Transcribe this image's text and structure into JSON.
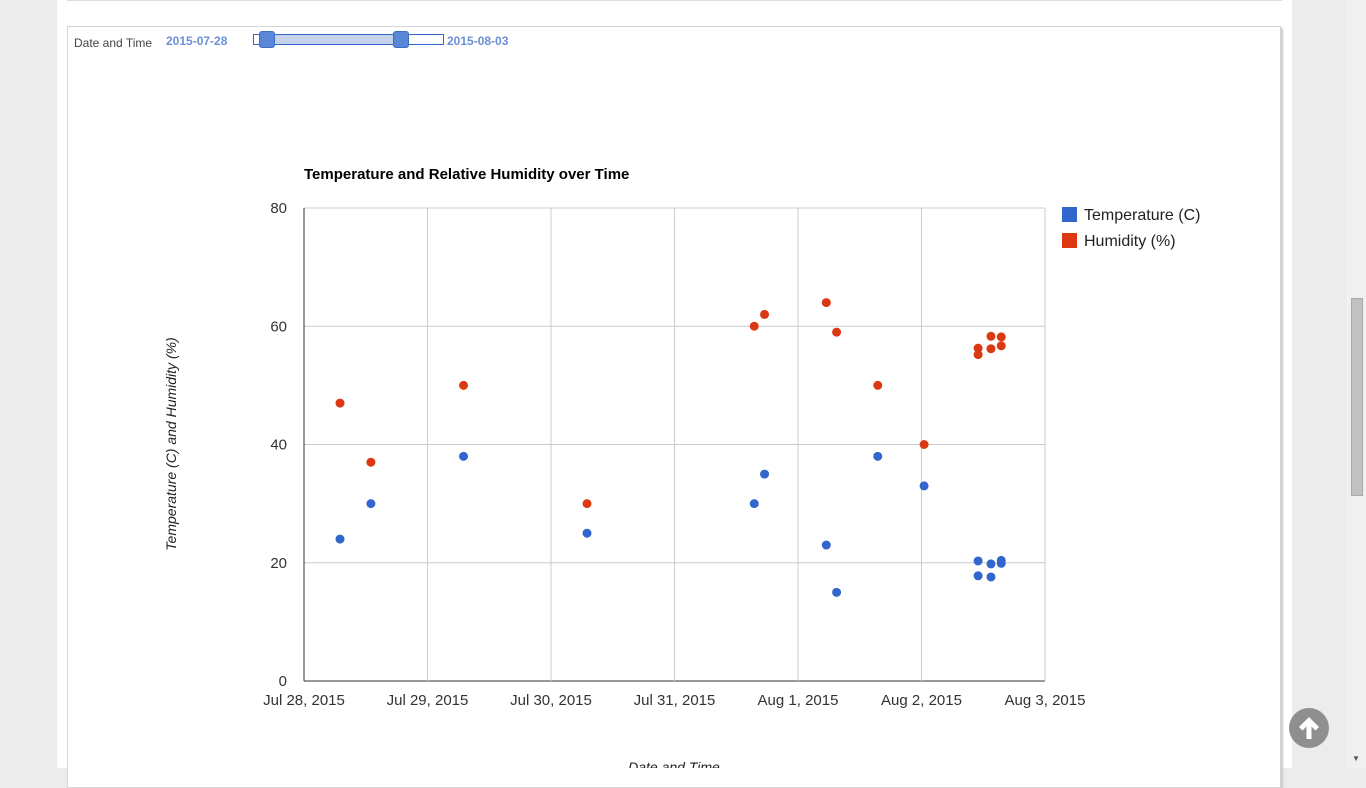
{
  "range_filter": {
    "label": "Date and Time",
    "start": "2015-07-28",
    "end": "2015-08-03",
    "low_fraction": 0.07,
    "high_fraction": 0.77
  },
  "chart_data": {
    "type": "scatter",
    "title": "Temperature and Relative Humidity over Time",
    "xlabel": "Date and Time",
    "ylabel": "Temperature (C) and Humidity (%)",
    "ylim": [
      0,
      80
    ],
    "yticks": [
      "0",
      "20",
      "40",
      "60",
      "80"
    ],
    "x_domain": [
      "2015-07-28T00:00",
      "2015-08-03T00:00"
    ],
    "xticks": [
      {
        "date": "2015-07-28",
        "label": "Jul 28, 2015"
      },
      {
        "date": "2015-07-29",
        "label": "Jul 29, 2015"
      },
      {
        "date": "2015-07-30",
        "label": "Jul 30, 2015"
      },
      {
        "date": "2015-07-31",
        "label": "Jul 31, 2015"
      },
      {
        "date": "2015-08-01",
        "label": "Aug 1, 2015"
      },
      {
        "date": "2015-08-02",
        "label": "Aug 2, 2015"
      },
      {
        "date": "2015-08-03",
        "label": "Aug 3, 2015"
      }
    ],
    "grid": true,
    "legend_position": "right",
    "series": [
      {
        "name": "Temperature (C)",
        "color": "#3366cc",
        "points": [
          {
            "x": "2015-07-28T07:00",
            "y": 24
          },
          {
            "x": "2015-07-28T13:00",
            "y": 30
          },
          {
            "x": "2015-07-29T07:00",
            "y": 38
          },
          {
            "x": "2015-07-30T07:00",
            "y": 25
          },
          {
            "x": "2015-07-31T15:30",
            "y": 30
          },
          {
            "x": "2015-07-31T17:30",
            "y": 35
          },
          {
            "x": "2015-08-01T05:30",
            "y": 23
          },
          {
            "x": "2015-08-01T07:30",
            "y": 15
          },
          {
            "x": "2015-08-01T15:30",
            "y": 38
          },
          {
            "x": "2015-08-02T00:30",
            "y": 33
          },
          {
            "x": "2015-08-02T11:00",
            "y": 20.3
          },
          {
            "x": "2015-08-02T11:00",
            "y": 17.8
          },
          {
            "x": "2015-08-02T13:30",
            "y": 19.8
          },
          {
            "x": "2015-08-02T13:30",
            "y": 17.6
          },
          {
            "x": "2015-08-02T15:30",
            "y": 20.4
          },
          {
            "x": "2015-08-02T15:30",
            "y": 19.9
          }
        ]
      },
      {
        "name": "Humidity (%)",
        "color": "#dc3912",
        "points": [
          {
            "x": "2015-07-28T07:00",
            "y": 47
          },
          {
            "x": "2015-07-28T13:00",
            "y": 37
          },
          {
            "x": "2015-07-29T07:00",
            "y": 50
          },
          {
            "x": "2015-07-30T07:00",
            "y": 30
          },
          {
            "x": "2015-07-31T15:30",
            "y": 60
          },
          {
            "x": "2015-07-31T17:30",
            "y": 62
          },
          {
            "x": "2015-08-01T05:30",
            "y": 64
          },
          {
            "x": "2015-08-01T07:30",
            "y": 59
          },
          {
            "x": "2015-08-01T15:30",
            "y": 50
          },
          {
            "x": "2015-08-02T00:30",
            "y": 40
          },
          {
            "x": "2015-08-02T11:00",
            "y": 56.3
          },
          {
            "x": "2015-08-02T11:00",
            "y": 55.2
          },
          {
            "x": "2015-08-02T13:30",
            "y": 58.3
          },
          {
            "x": "2015-08-02T13:30",
            "y": 56.2
          },
          {
            "x": "2015-08-02T15:30",
            "y": 58.2
          },
          {
            "x": "2015-08-02T15:30",
            "y": 56.7
          }
        ]
      }
    ]
  },
  "colors": {
    "temperature": "#3366cc",
    "humidity": "#dc3912",
    "slider_accent": "#5b87d9"
  },
  "icons": {
    "scroll_top": "arrow-up-circle-icon"
  }
}
